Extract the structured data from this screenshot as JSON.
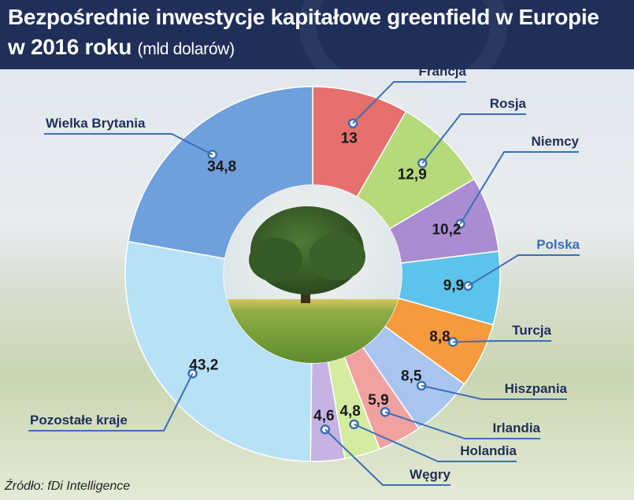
{
  "header": {
    "title_line1": "Bezpośrednie inwestycje kapitałowe greenfield w Europie",
    "title_line2": "w 2016 roku",
    "title_unit": "(mld dolarów)"
  },
  "source": "Źródło: fDi Intelligence",
  "chart_data": {
    "type": "pie",
    "variant": "donut",
    "title": "Bezpośrednie inwestycje kapitałowe greenfield w Europie w 2016 roku",
    "unit": "(mld dolarów)",
    "highlight": "Polska",
    "slices": [
      {
        "name": "Francja",
        "value": 13,
        "value_label": "13",
        "color": "#e5706e"
      },
      {
        "name": "Rosja",
        "value": 12.9,
        "value_label": "12,9",
        "color": "#b6d97a"
      },
      {
        "name": "Niemcy",
        "value": 10.2,
        "value_label": "10,2",
        "color": "#a98cd1"
      },
      {
        "name": "Polska",
        "value": 9.9,
        "value_label": "9,9",
        "color": "#5cc4ec"
      },
      {
        "name": "Turcja",
        "value": 8.8,
        "value_label": "8,8",
        "color": "#f79a3e"
      },
      {
        "name": "Hiszpania",
        "value": 8.5,
        "value_label": "8,5",
        "color": "#a7c5ef"
      },
      {
        "name": "Irlandia",
        "value": 5.9,
        "value_label": "5,9",
        "color": "#f2a1a1"
      },
      {
        "name": "Holandia",
        "value": 4.8,
        "value_label": "4,8",
        "color": "#d4ec9f"
      },
      {
        "name": "Węgry",
        "value": 4.6,
        "value_label": "4,6",
        "color": "#c6b2e3"
      },
      {
        "name": "Pozostałe kraje",
        "value": 43.2,
        "value_label": "43,2",
        "color": "#b7e1f6"
      },
      {
        "name": "Wielka Brytania",
        "value": 34.8,
        "value_label": "34,8",
        "color": "#6f9fdc"
      }
    ],
    "label_color": "#1f2f59",
    "highlight_color": "#3b6fb6",
    "line_color": "#3b6fb6"
  }
}
